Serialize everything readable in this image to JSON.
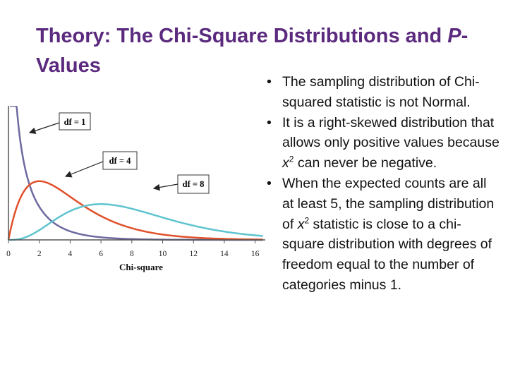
{
  "slide": {
    "title_part1": "Theory: The Chi-Square Distributions and ",
    "title_italic": "P",
    "title_part2": "-Values",
    "bullets": [
      {
        "text": "The sampling distribution of Chi-squared statistic is not Normal."
      },
      {
        "pre": "It is a right-skewed distribution that allows only positive values because ",
        "var": "x",
        "sup": "2",
        "post": " can never be negative."
      },
      {
        "pre": "When the expected counts are all at least 5, the sampling distribution of ",
        "var": "x",
        "sup": "2",
        "post": " statistic is close to a chi-square distribution with degrees  of freedom equal to the number of categories minus 1."
      }
    ]
  },
  "chart_data": {
    "type": "line",
    "xlabel": "Chi-square",
    "xlim": [
      0,
      16.5
    ],
    "ylim": [
      0,
      0.42
    ],
    "xticks": [
      0,
      2,
      4,
      6,
      8,
      10,
      12,
      14,
      16
    ],
    "series": [
      {
        "name": "df = 1",
        "df": 1,
        "color": "#6e6aa0"
      },
      {
        "name": "df = 4",
        "df": 4,
        "color": "#e0512c"
      },
      {
        "name": "df = 8",
        "df": 8,
        "color": "#5ec4cf"
      }
    ]
  }
}
